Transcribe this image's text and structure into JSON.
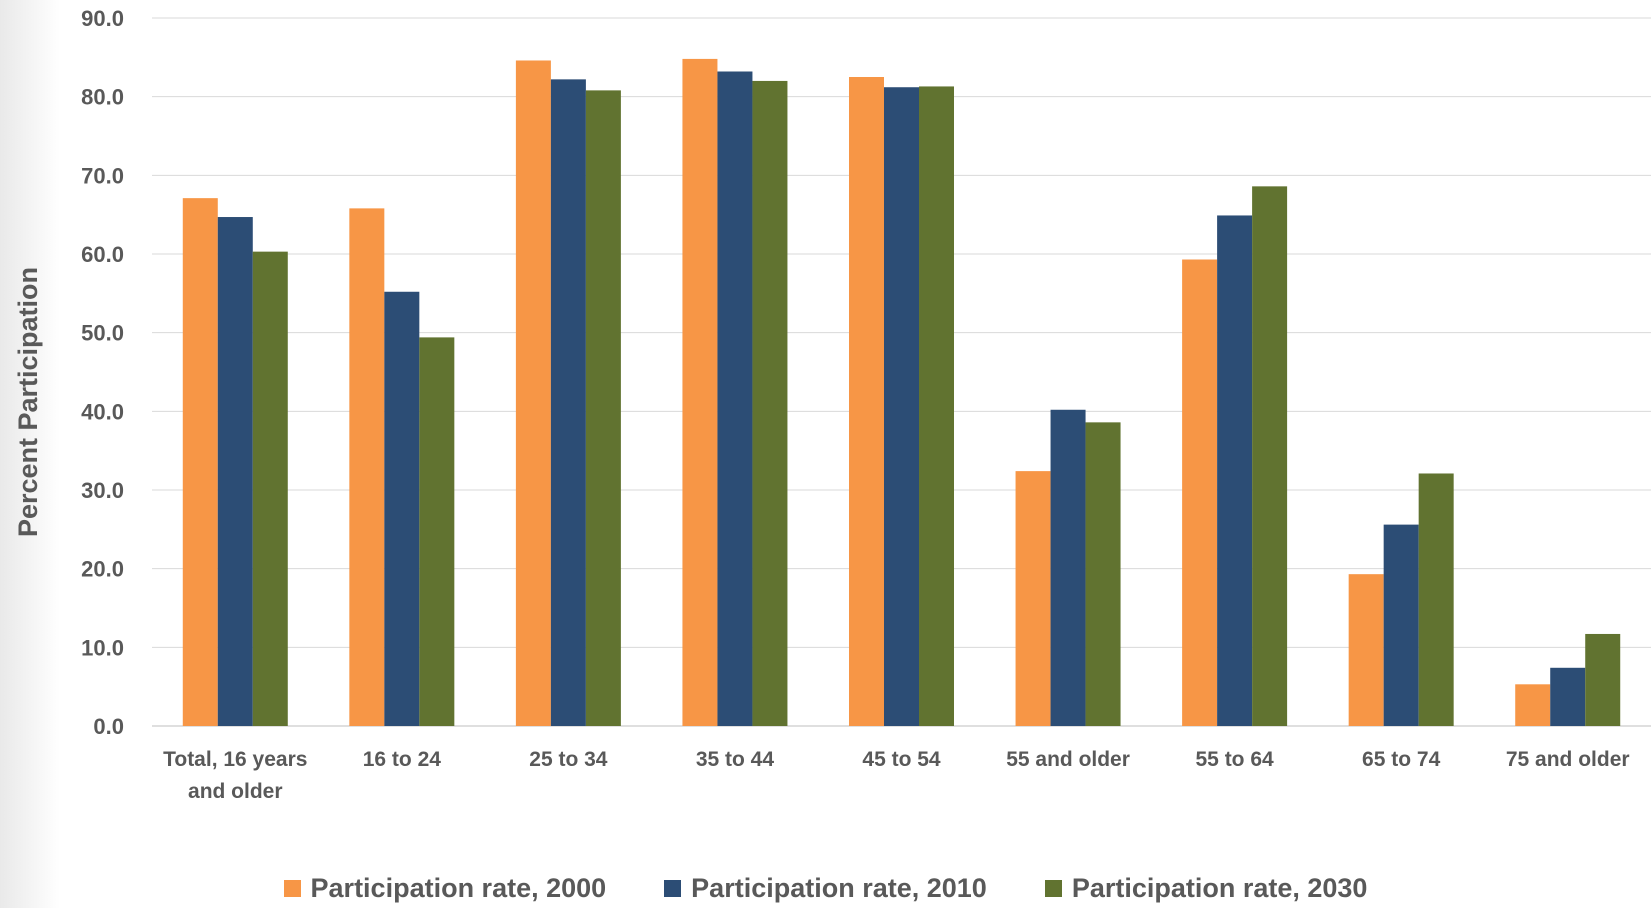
{
  "chart_data": {
    "type": "bar",
    "title": "",
    "xlabel": "",
    "ylabel": "Percent Participation",
    "ylim": [
      0,
      90
    ],
    "yticks": [
      "0.0",
      "10.0",
      "20.0",
      "30.0",
      "40.0",
      "50.0",
      "60.0",
      "70.0",
      "80.0",
      "90.0"
    ],
    "grid": true,
    "legend_position": "bottom",
    "categories": [
      [
        "Total, 16 years",
        "and older"
      ],
      [
        "16 to 24"
      ],
      [
        "25 to 34"
      ],
      [
        "35 to 44"
      ],
      [
        "45 to 54"
      ],
      [
        "55 and older"
      ],
      [
        "55 to 64"
      ],
      [
        "65 to 74"
      ],
      [
        "75 and older"
      ]
    ],
    "series": [
      {
        "name": "Participation rate, 2000",
        "color": "#F79646",
        "values": [
          67.1,
          65.8,
          84.6,
          84.8,
          82.5,
          32.4,
          59.3,
          19.3,
          5.3
        ]
      },
      {
        "name": "Participation rate, 2010",
        "color": "#2C4D75",
        "values": [
          64.7,
          55.2,
          82.2,
          83.2,
          81.2,
          40.2,
          64.9,
          25.6,
          7.4
        ]
      },
      {
        "name": "Participation rate, 2030",
        "color": "#617330",
        "values": [
          60.3,
          49.4,
          80.8,
          82.0,
          81.3,
          38.6,
          68.6,
          32.1,
          11.7
        ]
      }
    ]
  }
}
